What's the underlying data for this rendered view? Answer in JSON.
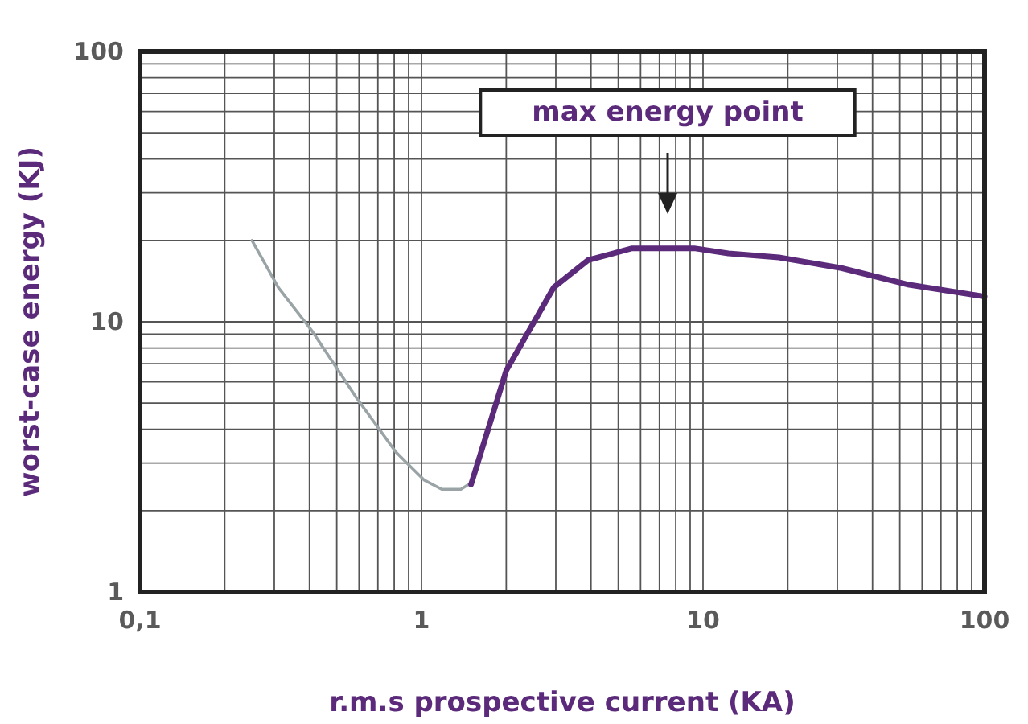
{
  "chart_data": {
    "type": "line",
    "xlabel": "r.m.s prospective current (KA)",
    "ylabel": "worst-case energy (KJ)",
    "log": "xy",
    "grid": true,
    "marker": "none",
    "line_style": "solid",
    "xlim": [
      0.1,
      100
    ],
    "ylim": [
      1,
      100
    ],
    "xticks": [
      {
        "value": 0.1,
        "label": "0,1"
      },
      {
        "value": 0.2,
        "label": null
      },
      {
        "value": 0.3,
        "label": null
      },
      {
        "value": 0.4,
        "label": null
      },
      {
        "value": 0.5,
        "label": null
      },
      {
        "value": 0.6,
        "label": null
      },
      {
        "value": 0.7,
        "label": null
      },
      {
        "value": 0.8,
        "label": null
      },
      {
        "value": 0.9,
        "label": null
      },
      1,
      {
        "value": 2,
        "label": null
      },
      {
        "value": 3,
        "label": null
      },
      {
        "value": 4,
        "label": null
      },
      {
        "value": 5,
        "label": null
      },
      {
        "value": 6,
        "label": null
      },
      {
        "value": 7,
        "label": null
      },
      {
        "value": 8,
        "label": null
      },
      {
        "value": 9,
        "label": null
      },
      10,
      {
        "value": 20,
        "label": null
      },
      {
        "value": 30,
        "label": null
      },
      {
        "value": 40,
        "label": null
      },
      {
        "value": 50,
        "label": null
      },
      {
        "value": 60,
        "label": null
      },
      {
        "value": 70,
        "label": null
      },
      {
        "value": 80,
        "label": null
      },
      {
        "value": 90,
        "label": null
      },
      100
    ],
    "yticks": [
      1,
      {
        "value": 2,
        "label": null
      },
      {
        "value": 3,
        "label": null
      },
      {
        "value": 4,
        "label": null
      },
      {
        "value": 5,
        "label": null
      },
      {
        "value": 6,
        "label": null
      },
      {
        "value": 7,
        "label": null
      },
      {
        "value": 8,
        "label": null
      },
      {
        "value": 9,
        "label": null
      },
      10,
      {
        "value": 20,
        "label": null
      },
      {
        "value": 30,
        "label": null
      },
      {
        "value": 40,
        "label": null
      },
      {
        "value": 50,
        "label": null
      },
      {
        "value": 60,
        "label": null
      },
      {
        "value": 70,
        "label": null
      },
      {
        "value": 80,
        "label": null
      },
      {
        "value": 90,
        "label": null
      },
      100
    ],
    "series": [
      {
        "color": "#9aa4a6",
        "x": [
          0.25,
          0.31,
          0.41,
          0.59,
          0.81,
          1.02,
          1.18,
          1.38,
          1.47
        ],
        "values": [
          20,
          13.4,
          9.2,
          5.2,
          3.3,
          2.6,
          2.4,
          2.4,
          2.5
        ]
      },
      {
        "color": "#5b2a7a",
        "x": [
          1.5,
          2.0,
          2.95,
          3.9,
          5.6,
          9.3,
          12.3,
          18.6,
          31,
          54,
          100
        ],
        "values": [
          2.5,
          6.6,
          13.4,
          16.9,
          18.7,
          18.7,
          17.9,
          17.3,
          15.8,
          13.7,
          12.4
        ]
      }
    ],
    "annotations": [
      "max energy point"
    ]
  }
}
